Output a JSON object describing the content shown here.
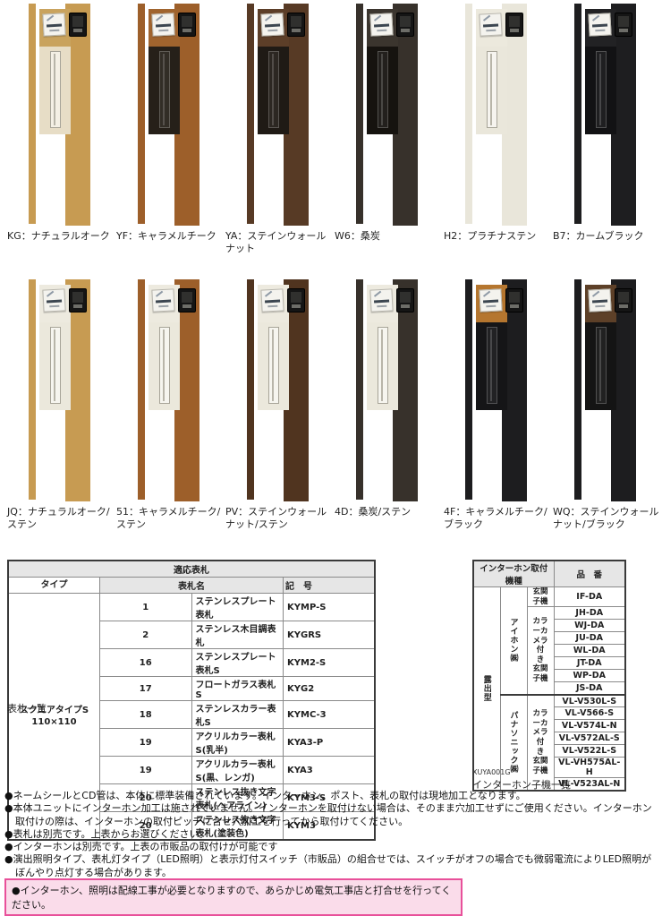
{
  "posts": {
    "shared": {
      "intercom_color": "#151515",
      "nameplate_color": "#f4f3ee",
      "stainless_color": "#edeadf"
    },
    "row1": [
      {
        "code": "KG",
        "label": "KG：ナチュラルオーク",
        "body": "#c79b52",
        "panel": "#c9a35e",
        "louver": "#e7ddc6",
        "louver_style": "light"
      },
      {
        "code": "YF",
        "label": "YF：キャラメルチーク",
        "body": "#9d5f2a",
        "panel": "#a0642e",
        "louver": "#262019",
        "louver_style": "dark"
      },
      {
        "code": "YA",
        "label": "YA：ステインウォールナット",
        "body": "#573a25",
        "panel": "#5c3e28",
        "louver": "#1f1a15",
        "louver_style": "dark"
      },
      {
        "code": "W6",
        "label": "W6：桑炭",
        "body": "#37312b",
        "panel": "#3b352e",
        "louver": "#16130f",
        "louver_style": "dark"
      },
      {
        "code": "H2",
        "label": "H2：プラチナステン",
        "body": "#e9e6da",
        "panel": "#ece9dd",
        "louver": "#eae7db",
        "louver_style": "light"
      },
      {
        "code": "B7",
        "label": "B7：カームブラック",
        "body": "#1e1e20",
        "panel": "#222224",
        "louver": "#121214",
        "louver_style": "dark"
      }
    ],
    "row2": [
      {
        "code": "JQ",
        "label": "JQ：ナチュラルオーク/\nステン",
        "body": "#c79b52",
        "panel": "#edeadf",
        "louver": "#ebe8dc",
        "louver_style": "light"
      },
      {
        "code": "51",
        "label": "51：キャラメルチーク/\nステン",
        "body": "#9d5f2a",
        "panel": "#edeadf",
        "louver": "#ebe8dc",
        "louver_style": "light"
      },
      {
        "code": "PV",
        "label": "PV：ステインウォール\nナット/ステン",
        "body": "#50341f",
        "panel": "#edeadf",
        "louver": "#ebe8dc",
        "louver_style": "light"
      },
      {
        "code": "4D",
        "label": "4D：桑炭/ステン",
        "body": "#37312b",
        "panel": "#edeadf",
        "louver": "#ebe8dc",
        "louver_style": "light"
      },
      {
        "code": "4F",
        "label": "4F：キャラメルチーク/\nブラック",
        "body": "#1d1d1f",
        "panel": "#b5762f",
        "louver": "#151517",
        "louver_style": "dark"
      },
      {
        "code": "WQ",
        "label": "WQ：ステインウォール\nナット/ブラック",
        "body": "#1d1d1f",
        "panel": "#5d4028",
        "louver": "#141414",
        "louver_style": "dark"
      }
    ]
  },
  "nameplate_table": {
    "title": "適応表札",
    "col_type": "タイプ",
    "col_name": "表札名",
    "col_code": "記　号",
    "type_cell": "スクエアタイプS\n110×110",
    "rows": [
      [
        "1",
        "ステンレスプレート表札",
        "KYMP-S"
      ],
      [
        "2",
        "ステンレス木目調表札",
        "KYGRS"
      ],
      [
        "16",
        "ステンレスプレート表札S",
        "KYM2-S"
      ],
      [
        "17",
        "フロートガラス表札S",
        "KYG2"
      ],
      [
        "18",
        "ステンレスカラー表札S",
        "KYMC-3"
      ],
      [
        "19",
        "アクリルカラー表札S(乳半)",
        "KYA3-P"
      ],
      [
        "19",
        "アクリルカラー表札S(黒、レンガ)",
        "KYA3"
      ],
      [
        "20",
        "ステンレス抜き文字表札(ヘアライン)",
        "KYM3-S"
      ],
      [
        "20",
        "ステンレス抜き文字表札(塗装色)",
        "KYM3"
      ]
    ],
    "caption": "表札一覧"
  },
  "intercom_table": {
    "title": "インターホン取付機種",
    "col_model": "品　番",
    "mount_type": "露出型",
    "makers": [
      {
        "name": "アイホン㈱",
        "groups": [
          {
            "type": "玄関子機",
            "models": [
              "IF-DA"
            ]
          },
          {
            "type": "カラーカメラ\n付　き\n玄関子機",
            "models": [
              "JH-DA",
              "WJ-DA",
              "JU-DA",
              "WL-DA",
              "JT-DA",
              "WP-DA",
              "JS-DA"
            ]
          }
        ]
      },
      {
        "name": "パナソニック㈱",
        "groups": [
          {
            "type": "カラーカメラ\n付　き\n玄関子機",
            "models": [
              "VL-V530L-S",
              "VL-V566-S",
              "VL-V574L-N",
              "VL-V572AL-S",
              "VL-V522L-S",
              "VL-VH575AL-H",
              "VL-V523AL-N"
            ]
          }
        ]
      }
    ],
    "code": "XUYA001G",
    "caption": "インターホン子機一覧"
  },
  "notes": {
    "items": [
      "●ネームシールとCD管は、本体に標準装備されています。インターホン、ポスト、表札の取付は現地加工となります。",
      "●本体ユニットにインターホン加工は施されていません。インターホンを取付けない場合は、そのまま穴加工せずにご使用ください。インターホン取付けの際は、インターホンの取付ピッチに合せ穴加工を行ってから取付けてください。",
      "●表札は別売です。上表からお選びください。",
      "●インターホンは別売です。上表の市販品の取付けが可能です",
      "●演出照明タイプ、表札灯タイプ（LED照明）と表示灯付スイッチ（市販品）の組合せでは、スイッチがオフの場合でも微弱電流によりLED照明がぼんやり点灯する場合があります。"
    ],
    "warning": "●インターホン、照明は配線工事が必要となりますので、あらかじめ電気工事店と打合せを行ってください。",
    "warning_border": "#e8509a",
    "warning_bg": "#fadcea"
  }
}
